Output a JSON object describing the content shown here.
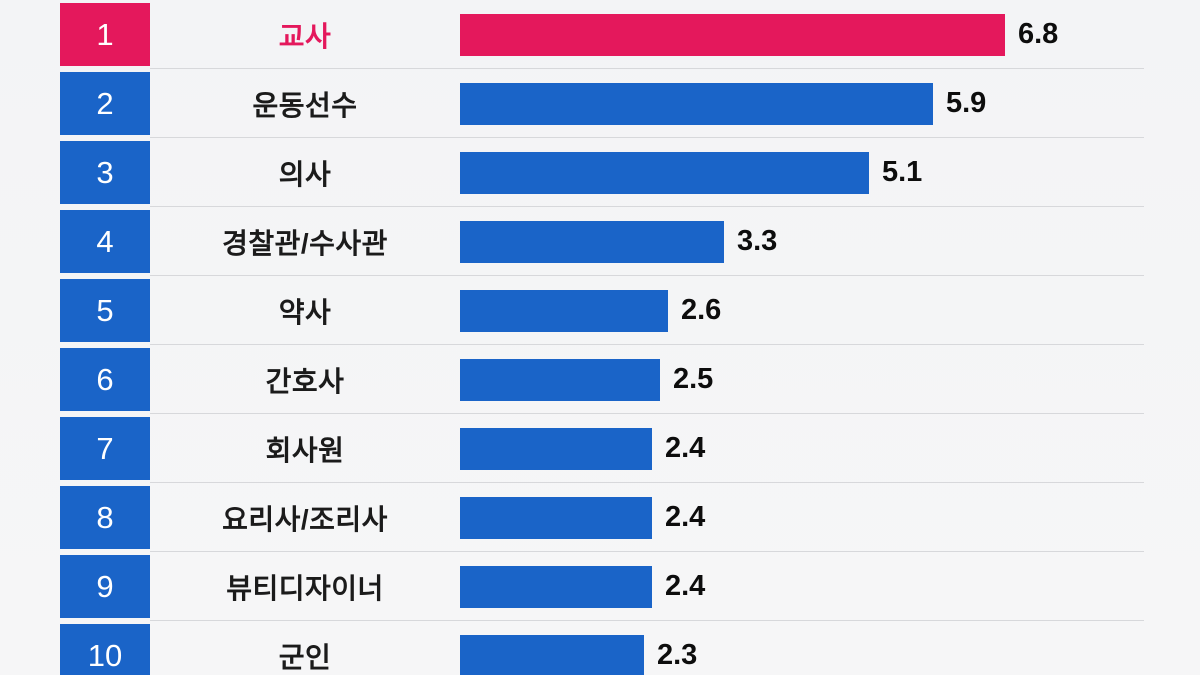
{
  "chart_data": {
    "type": "bar",
    "orientation": "horizontal",
    "title": "",
    "categories": [
      "교사",
      "운동선수",
      "의사",
      "경찰관/수사관",
      "약사",
      "간호사",
      "회사원",
      "요리사/조리사",
      "뷰티디자이너",
      "군인"
    ],
    "ranks": [
      "1",
      "2",
      "3",
      "4",
      "5",
      "6",
      "7",
      "8",
      "9",
      "10"
    ],
    "values": [
      6.8,
      5.9,
      5.1,
      3.3,
      2.6,
      2.5,
      2.4,
      2.4,
      2.4,
      2.3
    ],
    "value_labels": [
      "6.8",
      "5.9",
      "5.1",
      "3.3",
      "2.6",
      "2.5",
      "2.4",
      "2.4",
      "2.4",
      "2.3"
    ],
    "highlight_index": 0,
    "xlim": [
      0,
      6.8
    ],
    "grid": false,
    "legend": false,
    "colors": {
      "highlight_pink": "#E4185C",
      "bar_blue": "#1A64C8",
      "value_text": "#0d0d0d",
      "label_text": "#1b1b1b",
      "background": "#f4f5f6"
    }
  }
}
